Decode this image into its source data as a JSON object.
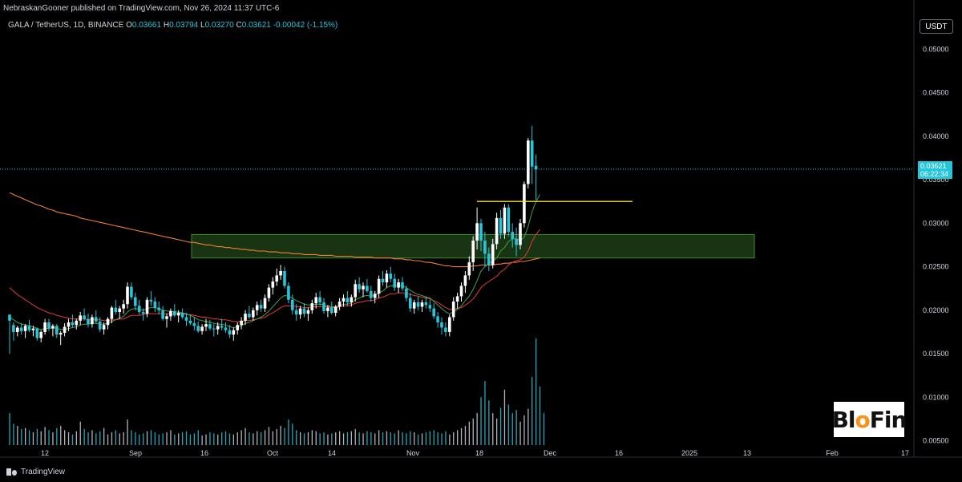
{
  "header": {
    "published": "NebraskanGooner published on TradingView.com, Nov 26, 2024 11:37 UTC-6"
  },
  "symbol": {
    "name": "GALA / TetherUS, 1D, BINANCE",
    "open_label": "O",
    "open": "0.03661",
    "high_label": "H",
    "high": "0.03794",
    "low_label": "L",
    "low": "0.03270",
    "close_label": "C",
    "close": "0.03621",
    "change": "-0.00042 (-1.15%)"
  },
  "currency": "USDT",
  "last_price": {
    "value": "0.03621",
    "countdown": "06:22:34"
  },
  "brand": {
    "text_a": "Bl",
    "text_b": "o",
    "text_c": "Fin"
  },
  "footer": {
    "logo_text": "TradingView"
  },
  "colors": {
    "up": "#ffffff",
    "down": "#26c6da",
    "ema_red": "#e53935",
    "ema_green": "#43a047",
    "ma_orange": "#ef7f35",
    "zone": "#2e5f20",
    "level_line": "#f7e13d",
    "volume": "#d1d4dc",
    "grid": "#131722"
  },
  "chart_data": {
    "type": "candlestick",
    "y_axis": {
      "ticks": [
        "0.05000",
        "0.04500",
        "0.04000",
        "0.03500",
        "0.03000",
        "0.02500",
        "0.02000",
        "0.01500",
        "0.01000",
        "0.00500"
      ]
    },
    "x_axis": {
      "ticks": [
        "12",
        "Sep",
        "16",
        "Oct",
        "14",
        "Nov",
        "18",
        "Dec",
        "16",
        "2025",
        "13",
        "Feb",
        "17"
      ]
    },
    "ylim": [
      0.0045,
      0.0515
    ],
    "support_zone": [
      0.026,
      0.0287
    ],
    "resistance_level": 0.0325,
    "last_price": 0.03621,
    "candles": [
      [
        0.0195,
        0.0193,
        0.015,
        0.0188
      ],
      [
        0.0183,
        0.0186,
        0.0165,
        0.0175
      ],
      [
        0.0175,
        0.0182,
        0.017,
        0.018
      ],
      [
        0.018,
        0.0185,
        0.0172,
        0.0176
      ],
      [
        0.0176,
        0.0184,
        0.0168,
        0.0182
      ],
      [
        0.0182,
        0.0189,
        0.0175,
        0.0177
      ],
      [
        0.0177,
        0.0182,
        0.017,
        0.0179
      ],
      [
        0.0179,
        0.018,
        0.0165,
        0.0168
      ],
      [
        0.0168,
        0.0177,
        0.0163,
        0.0175
      ],
      [
        0.0175,
        0.019,
        0.0172,
        0.0186
      ],
      [
        0.0186,
        0.019,
        0.0176,
        0.0179
      ],
      [
        0.0179,
        0.0184,
        0.017,
        0.0182
      ],
      [
        0.0182,
        0.0184,
        0.0168,
        0.0172
      ],
      [
        0.0172,
        0.0176,
        0.016,
        0.0174
      ],
      [
        0.0174,
        0.0185,
        0.017,
        0.0181
      ],
      [
        0.0181,
        0.019,
        0.0176,
        0.0186
      ],
      [
        0.0186,
        0.0195,
        0.018,
        0.0183
      ],
      [
        0.0183,
        0.019,
        0.0178,
        0.0188
      ],
      [
        0.0188,
        0.0198,
        0.0183,
        0.0194
      ],
      [
        0.0194,
        0.0202,
        0.0188,
        0.019
      ],
      [
        0.019,
        0.0196,
        0.018,
        0.0184
      ],
      [
        0.0184,
        0.0195,
        0.018,
        0.0192
      ],
      [
        0.0192,
        0.02,
        0.0185,
        0.0187
      ],
      [
        0.0187,
        0.0192,
        0.0175,
        0.0178
      ],
      [
        0.0178,
        0.0186,
        0.0172,
        0.0183
      ],
      [
        0.0183,
        0.0192,
        0.0178,
        0.019
      ],
      [
        0.019,
        0.0205,
        0.0185,
        0.0203
      ],
      [
        0.0203,
        0.0212,
        0.0195,
        0.0198
      ],
      [
        0.0198,
        0.0205,
        0.019,
        0.0202
      ],
      [
        0.0202,
        0.0212,
        0.0196,
        0.0207
      ],
      [
        0.0207,
        0.0232,
        0.0202,
        0.0227
      ],
      [
        0.0227,
        0.0232,
        0.0212,
        0.0215
      ],
      [
        0.0215,
        0.022,
        0.02,
        0.0205
      ],
      [
        0.0205,
        0.0212,
        0.0195,
        0.0198
      ],
      [
        0.0198,
        0.0202,
        0.0188,
        0.0196
      ],
      [
        0.0196,
        0.0215,
        0.0192,
        0.0212
      ],
      [
        0.0212,
        0.0222,
        0.0205,
        0.021
      ],
      [
        0.021,
        0.0215,
        0.0198,
        0.0203
      ],
      [
        0.0203,
        0.021,
        0.0195,
        0.02
      ],
      [
        0.02,
        0.0205,
        0.0188,
        0.019
      ],
      [
        0.019,
        0.0196,
        0.018,
        0.0193
      ],
      [
        0.0193,
        0.0202,
        0.0188,
        0.0199
      ],
      [
        0.0199,
        0.0207,
        0.0192,
        0.0194
      ],
      [
        0.0194,
        0.02,
        0.0186,
        0.0197
      ],
      [
        0.0197,
        0.0202,
        0.019,
        0.0192
      ],
      [
        0.0192,
        0.0197,
        0.0182,
        0.0188
      ],
      [
        0.0188,
        0.0195,
        0.0183,
        0.0185
      ],
      [
        0.0185,
        0.0192,
        0.0177,
        0.0182
      ],
      [
        0.0182,
        0.0187,
        0.0174,
        0.0176
      ],
      [
        0.0176,
        0.0184,
        0.0172,
        0.0181
      ],
      [
        0.0181,
        0.019,
        0.0176,
        0.0184
      ],
      [
        0.0184,
        0.0189,
        0.0177,
        0.0179
      ],
      [
        0.0179,
        0.0184,
        0.017,
        0.0178
      ],
      [
        0.0178,
        0.0186,
        0.0172,
        0.0182
      ],
      [
        0.0182,
        0.019,
        0.0177,
        0.018
      ],
      [
        0.018,
        0.0186,
        0.0174,
        0.0177
      ],
      [
        0.0177,
        0.0183,
        0.0168,
        0.0172
      ],
      [
        0.0172,
        0.018,
        0.0165,
        0.0177
      ],
      [
        0.0177,
        0.0186,
        0.0172,
        0.0183
      ],
      [
        0.0183,
        0.0192,
        0.0178,
        0.0188
      ],
      [
        0.0188,
        0.02,
        0.0183,
        0.0196
      ],
      [
        0.0196,
        0.0205,
        0.019,
        0.0192
      ],
      [
        0.0192,
        0.0203,
        0.0188,
        0.02
      ],
      [
        0.02,
        0.021,
        0.0194,
        0.0206
      ],
      [
        0.0206,
        0.0212,
        0.0198,
        0.0202
      ],
      [
        0.0202,
        0.0218,
        0.0198,
        0.0214
      ],
      [
        0.0214,
        0.023,
        0.021,
        0.0226
      ],
      [
        0.0226,
        0.0238,
        0.0218,
        0.0233
      ],
      [
        0.0233,
        0.0248,
        0.0228,
        0.024
      ],
      [
        0.024,
        0.0252,
        0.0235,
        0.0245
      ],
      [
        0.0245,
        0.025,
        0.0225,
        0.0228
      ],
      [
        0.0228,
        0.0232,
        0.0208,
        0.0212
      ],
      [
        0.0212,
        0.0218,
        0.0195,
        0.02
      ],
      [
        0.02,
        0.0207,
        0.0188,
        0.0195
      ],
      [
        0.0195,
        0.0205,
        0.019,
        0.0202
      ],
      [
        0.0202,
        0.0208,
        0.0192,
        0.0196
      ],
      [
        0.0196,
        0.0203,
        0.0188,
        0.02
      ],
      [
        0.02,
        0.0212,
        0.0196,
        0.0208
      ],
      [
        0.0208,
        0.022,
        0.0202,
        0.0215
      ],
      [
        0.0215,
        0.0222,
        0.0205,
        0.0209
      ],
      [
        0.0209,
        0.0214,
        0.0196,
        0.0199
      ],
      [
        0.0199,
        0.0206,
        0.0192,
        0.0203
      ],
      [
        0.0203,
        0.021,
        0.0195,
        0.0197
      ],
      [
        0.0197,
        0.0206,
        0.0193,
        0.0204
      ],
      [
        0.0204,
        0.0214,
        0.02,
        0.021
      ],
      [
        0.021,
        0.0218,
        0.0204,
        0.0214
      ],
      [
        0.0214,
        0.0222,
        0.0205,
        0.0209
      ],
      [
        0.0209,
        0.0218,
        0.0204,
        0.0215
      ],
      [
        0.0215,
        0.0235,
        0.021,
        0.023
      ],
      [
        0.023,
        0.0238,
        0.022,
        0.0224
      ],
      [
        0.0224,
        0.0232,
        0.0215,
        0.0228
      ],
      [
        0.0228,
        0.0236,
        0.022,
        0.0222
      ],
      [
        0.0222,
        0.0228,
        0.021,
        0.0214
      ],
      [
        0.0214,
        0.0222,
        0.0208,
        0.0219
      ],
      [
        0.0219,
        0.024,
        0.0214,
        0.0236
      ],
      [
        0.0236,
        0.0245,
        0.0228,
        0.0232
      ],
      [
        0.0232,
        0.0246,
        0.0226,
        0.0242
      ],
      [
        0.0242,
        0.025,
        0.0232,
        0.0236
      ],
      [
        0.0236,
        0.0242,
        0.0222,
        0.0226
      ],
      [
        0.0226,
        0.0236,
        0.022,
        0.0232
      ],
      [
        0.0232,
        0.0238,
        0.0222,
        0.0225
      ],
      [
        0.0225,
        0.0228,
        0.021,
        0.0214
      ],
      [
        0.0214,
        0.022,
        0.0198,
        0.0202
      ],
      [
        0.0202,
        0.0212,
        0.0196,
        0.0209
      ],
      [
        0.0209,
        0.0216,
        0.02,
        0.0204
      ],
      [
        0.0204,
        0.0212,
        0.0198,
        0.0209
      ],
      [
        0.0209,
        0.0216,
        0.0202,
        0.0206
      ],
      [
        0.0206,
        0.0212,
        0.0198,
        0.0202
      ],
      [
        0.0202,
        0.0208,
        0.019,
        0.0193
      ],
      [
        0.0193,
        0.0198,
        0.018,
        0.0186
      ],
      [
        0.0186,
        0.0192,
        0.0172,
        0.018
      ],
      [
        0.018,
        0.0186,
        0.017,
        0.0175
      ],
      [
        0.0175,
        0.0195,
        0.017,
        0.0192
      ],
      [
        0.0192,
        0.0215,
        0.0188,
        0.021
      ],
      [
        0.021,
        0.022,
        0.0202,
        0.0216
      ],
      [
        0.0216,
        0.0232,
        0.021,
        0.0228
      ],
      [
        0.0228,
        0.0245,
        0.022,
        0.024
      ],
      [
        0.024,
        0.0262,
        0.0235,
        0.0255
      ],
      [
        0.0255,
        0.0285,
        0.0245,
        0.028
      ],
      [
        0.028,
        0.0318,
        0.027,
        0.03
      ],
      [
        0.03,
        0.0305,
        0.0268,
        0.028
      ],
      [
        0.028,
        0.029,
        0.025,
        0.0265
      ],
      [
        0.0265,
        0.0272,
        0.0245,
        0.0252
      ],
      [
        0.0252,
        0.0282,
        0.0248,
        0.0276
      ],
      [
        0.0276,
        0.0312,
        0.027,
        0.0306
      ],
      [
        0.0306,
        0.0315,
        0.0282,
        0.0288
      ],
      [
        0.0288,
        0.0322,
        0.0282,
        0.0318
      ],
      [
        0.0318,
        0.0322,
        0.0285,
        0.029
      ],
      [
        0.029,
        0.03,
        0.0272,
        0.0282
      ],
      [
        0.0282,
        0.0295,
        0.0262,
        0.0275
      ],
      [
        0.0275,
        0.0305,
        0.027,
        0.03
      ],
      [
        0.03,
        0.0348,
        0.0295,
        0.0345
      ],
      [
        0.0345,
        0.0398,
        0.034,
        0.0395
      ],
      [
        0.0395,
        0.0412,
        0.0345,
        0.0365
      ],
      [
        0.0366,
        0.0379,
        0.0327,
        0.0362
      ]
    ],
    "volume": [
      0.3,
      0.2,
      0.18,
      0.15,
      0.16,
      0.14,
      0.12,
      0.15,
      0.13,
      0.17,
      0.14,
      0.12,
      0.16,
      0.18,
      0.14,
      0.12,
      0.1,
      0.13,
      0.22,
      0.15,
      0.12,
      0.14,
      0.11,
      0.13,
      0.16,
      0.1,
      0.12,
      0.14,
      0.11,
      0.12,
      0.24,
      0.14,
      0.12,
      0.1,
      0.11,
      0.13,
      0.14,
      0.12,
      0.1,
      0.11,
      0.12,
      0.14,
      0.1,
      0.11,
      0.12,
      0.13,
      0.1,
      0.11,
      0.14,
      0.09,
      0.1,
      0.12,
      0.11,
      0.1,
      0.12,
      0.13,
      0.11,
      0.1,
      0.12,
      0.14,
      0.16,
      0.12,
      0.11,
      0.13,
      0.12,
      0.14,
      0.17,
      0.13,
      0.15,
      0.18,
      0.16,
      0.24,
      0.2,
      0.14,
      0.12,
      0.11,
      0.12,
      0.14,
      0.13,
      0.11,
      0.12,
      0.1,
      0.11,
      0.12,
      0.13,
      0.11,
      0.12,
      0.13,
      0.15,
      0.12,
      0.11,
      0.13,
      0.12,
      0.11,
      0.14,
      0.12,
      0.13,
      0.12,
      0.11,
      0.14,
      0.12,
      0.11,
      0.13,
      0.12,
      0.1,
      0.11,
      0.12,
      0.13,
      0.14,
      0.12,
      0.11,
      0.13,
      0.1,
      0.12,
      0.14,
      0.16,
      0.18,
      0.22,
      0.25,
      0.3,
      0.45,
      0.6,
      0.42,
      0.3,
      0.25,
      0.35,
      0.52,
      0.38,
      0.3,
      0.33,
      0.22,
      0.28,
      0.34,
      0.64,
      1.0,
      0.55,
      0.3
    ],
    "ema_fast": [
      0.0192,
      0.0189,
      0.0186,
      0.0184,
      0.0183,
      0.0182,
      0.0181,
      0.0179,
      0.0178,
      0.0179,
      0.0179,
      0.018,
      0.0179,
      0.0178,
      0.0178,
      0.0179,
      0.018,
      0.0181,
      0.0183,
      0.0184,
      0.0184,
      0.0185,
      0.0185,
      0.0184,
      0.0184,
      0.0185,
      0.0187,
      0.0189,
      0.0191,
      0.0193,
      0.0198,
      0.0201,
      0.0202,
      0.0201,
      0.02,
      0.0202,
      0.0203,
      0.0203,
      0.0202,
      0.02,
      0.0199,
      0.0199,
      0.0198,
      0.0198,
      0.0197,
      0.0196,
      0.0194,
      0.0192,
      0.0189,
      0.0188,
      0.0187,
      0.0186,
      0.0185,
      0.0184,
      0.0184,
      0.0183,
      0.0181,
      0.018,
      0.0181,
      0.0182,
      0.0185,
      0.0186,
      0.0188,
      0.019,
      0.0192,
      0.0195,
      0.0199,
      0.0204,
      0.0209,
      0.0214,
      0.0217,
      0.0216,
      0.0214,
      0.0211,
      0.0209,
      0.0207,
      0.0206,
      0.0206,
      0.0207,
      0.0207,
      0.0206,
      0.0205,
      0.0204,
      0.0204,
      0.0205,
      0.0207,
      0.0207,
      0.0208,
      0.0212,
      0.0214,
      0.0216,
      0.0217,
      0.0216,
      0.0217,
      0.022,
      0.0222,
      0.0226,
      0.0228,
      0.0228,
      0.0228,
      0.0228,
      0.0226,
      0.0223,
      0.022,
      0.0218,
      0.0217,
      0.0215,
      0.0214,
      0.021,
      0.0206,
      0.0202,
      0.0198,
      0.0196,
      0.0198,
      0.0201,
      0.0205,
      0.0211,
      0.0216,
      0.0224,
      0.0234,
      0.0245,
      0.025,
      0.0254,
      0.0256,
      0.026,
      0.0268,
      0.0272,
      0.0279,
      0.0282,
      0.0282,
      0.028,
      0.0284,
      0.0296,
      0.0313,
      0.0325,
      0.0333
    ],
    "ema_slow": [
      0.0226,
      0.0222,
      0.0218,
      0.0215,
      0.0212,
      0.0209,
      0.0206,
      0.0203,
      0.0201,
      0.0199,
      0.0197,
      0.0196,
      0.0194,
      0.0193,
      0.0192,
      0.0191,
      0.019,
      0.019,
      0.019,
      0.019,
      0.0189,
      0.0189,
      0.0189,
      0.0189,
      0.0188,
      0.0188,
      0.0189,
      0.0189,
      0.019,
      0.019,
      0.0192,
      0.0194,
      0.0194,
      0.0194,
      0.0195,
      0.0196,
      0.0196,
      0.0196,
      0.0196,
      0.0196,
      0.0196,
      0.0196,
      0.0196,
      0.0196,
      0.0196,
      0.0195,
      0.0195,
      0.0194,
      0.0193,
      0.0192,
      0.0192,
      0.0191,
      0.019,
      0.019,
      0.0189,
      0.0189,
      0.0188,
      0.0187,
      0.0187,
      0.0187,
      0.0188,
      0.0188,
      0.0189,
      0.019,
      0.0191,
      0.0192,
      0.0195,
      0.0197,
      0.02,
      0.0203,
      0.0205,
      0.0205,
      0.0205,
      0.0204,
      0.0204,
      0.0203,
      0.0203,
      0.0204,
      0.0204,
      0.0204,
      0.0204,
      0.0204,
      0.0203,
      0.0203,
      0.0204,
      0.0205,
      0.0205,
      0.0206,
      0.0208,
      0.0209,
      0.021,
      0.0211,
      0.0211,
      0.0212,
      0.0214,
      0.0215,
      0.0217,
      0.0219,
      0.0219,
      0.022,
      0.022,
      0.0219,
      0.0218,
      0.0217,
      0.0216,
      0.0215,
      0.0214,
      0.0213,
      0.0211,
      0.0209,
      0.0206,
      0.0203,
      0.0201,
      0.0201,
      0.0202,
      0.0203,
      0.0206,
      0.0209,
      0.0213,
      0.0219,
      0.0226,
      0.023,
      0.0233,
      0.0236,
      0.0239,
      0.0244,
      0.0247,
      0.0252,
      0.0255,
      0.0257,
      0.0258,
      0.0261,
      0.0268,
      0.0279,
      0.0287,
      0.0293
    ],
    "ma_long": [
      0.0335,
      0.0333,
      0.0331,
      0.0329,
      0.0327,
      0.0325,
      0.0323,
      0.0321,
      0.032,
      0.0318,
      0.0316,
      0.0315,
      0.0313,
      0.0312,
      0.0311,
      0.031,
      0.0309,
      0.0308,
      0.0306,
      0.0305,
      0.0304,
      0.0303,
      0.0302,
      0.0301,
      0.03,
      0.0299,
      0.0298,
      0.0297,
      0.0296,
      0.0295,
      0.0294,
      0.0293,
      0.0292,
      0.0291,
      0.029,
      0.0289,
      0.0288,
      0.0287,
      0.0286,
      0.0285,
      0.0284,
      0.0283,
      0.0282,
      0.0281,
      0.028,
      0.0279,
      0.0278,
      0.0278,
      0.0277,
      0.0276,
      0.0275,
      0.0275,
      0.0274,
      0.0273,
      0.0273,
      0.0272,
      0.0272,
      0.0271,
      0.0271,
      0.027,
      0.027,
      0.0269,
      0.0269,
      0.0268,
      0.0268,
      0.0268,
      0.0267,
      0.0267,
      0.0267,
      0.0266,
      0.0266,
      0.0266,
      0.0265,
      0.0265,
      0.0265,
      0.0264,
      0.0264,
      0.0264,
      0.0264,
      0.0263,
      0.0263,
      0.0263,
      0.0263,
      0.0262,
      0.0262,
      0.0262,
      0.0262,
      0.0262,
      0.0261,
      0.0261,
      0.0261,
      0.0261,
      0.0261,
      0.026,
      0.026,
      0.026,
      0.026,
      0.026,
      0.0259,
      0.0259,
      0.0259,
      0.0258,
      0.0258,
      0.0257,
      0.0257,
      0.0256,
      0.0255,
      0.0255,
      0.0254,
      0.0253,
      0.0252,
      0.0251,
      0.0251,
      0.025,
      0.025,
      0.025,
      0.025,
      0.025,
      0.0251,
      0.0251,
      0.0252,
      0.0252,
      0.0252,
      0.0252,
      0.0253,
      0.0253,
      0.0254,
      0.0254,
      0.0255,
      0.0255,
      0.0256,
      0.0256,
      0.0257,
      0.0258,
      0.0259,
      0.026
    ]
  }
}
